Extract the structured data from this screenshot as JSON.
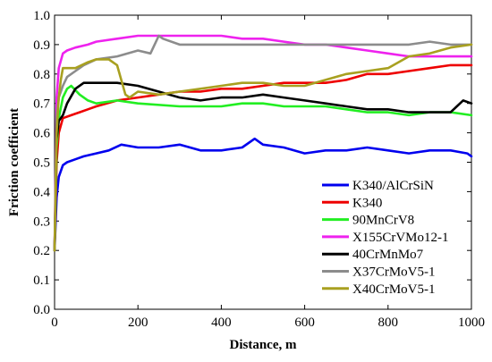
{
  "chart_data": {
    "type": "line",
    "title": "",
    "xlabel": "Distance, m",
    "ylabel": "Friction coefficient",
    "xlim": [
      0,
      1000
    ],
    "ylim": [
      0,
      1.0
    ],
    "x_ticks": [
      "0",
      "200",
      "400",
      "600",
      "800",
      "1000"
    ],
    "y_ticks": [
      "0.0",
      "0.1",
      "0.2",
      "0.3",
      "0.4",
      "0.5",
      "0.6",
      "0.7",
      "0.8",
      "0.9",
      "1.0"
    ],
    "grid": false,
    "legend_position": "lower-right",
    "series": [
      {
        "name": "K340/AlCrSiN",
        "color": "#0000ee",
        "x": [
          0,
          5,
          10,
          20,
          30,
          50,
          70,
          100,
          130,
          160,
          200,
          250,
          300,
          350,
          400,
          450,
          480,
          500,
          550,
          600,
          650,
          700,
          750,
          800,
          850,
          900,
          950,
          990,
          1000
        ],
        "y": [
          0.2,
          0.38,
          0.45,
          0.49,
          0.5,
          0.51,
          0.52,
          0.53,
          0.54,
          0.56,
          0.55,
          0.55,
          0.56,
          0.54,
          0.54,
          0.55,
          0.58,
          0.56,
          0.55,
          0.53,
          0.54,
          0.54,
          0.55,
          0.54,
          0.53,
          0.54,
          0.54,
          0.53,
          0.52
        ]
      },
      {
        "name": "K340",
        "color": "#ee0000",
        "x": [
          0,
          5,
          10,
          20,
          40,
          60,
          80,
          100,
          150,
          200,
          250,
          300,
          350,
          400,
          450,
          500,
          550,
          600,
          650,
          700,
          750,
          800,
          850,
          900,
          950,
          1000
        ],
        "y": [
          0.2,
          0.5,
          0.6,
          0.65,
          0.66,
          0.67,
          0.68,
          0.69,
          0.71,
          0.72,
          0.73,
          0.74,
          0.74,
          0.75,
          0.75,
          0.76,
          0.77,
          0.77,
          0.77,
          0.78,
          0.8,
          0.8,
          0.81,
          0.82,
          0.83,
          0.83
        ]
      },
      {
        "name": "90MnCrV8",
        "color": "#22ee22",
        "x": [
          0,
          5,
          10,
          20,
          30,
          40,
          60,
          80,
          100,
          150,
          200,
          300,
          400,
          450,
          500,
          550,
          600,
          650,
          700,
          750,
          800,
          850,
          900,
          950,
          1000
        ],
        "y": [
          0.2,
          0.55,
          0.65,
          0.72,
          0.75,
          0.76,
          0.73,
          0.71,
          0.7,
          0.71,
          0.7,
          0.69,
          0.69,
          0.7,
          0.7,
          0.69,
          0.69,
          0.69,
          0.68,
          0.67,
          0.67,
          0.66,
          0.67,
          0.67,
          0.66
        ]
      },
      {
        "name": "X155CrVMo12-1",
        "color": "#ee22ee",
        "x": [
          0,
          5,
          10,
          20,
          30,
          50,
          80,
          100,
          150,
          200,
          250,
          300,
          350,
          400,
          450,
          500,
          550,
          600,
          650,
          700,
          750,
          800,
          850,
          900,
          950,
          1000
        ],
        "y": [
          0.2,
          0.72,
          0.82,
          0.87,
          0.88,
          0.89,
          0.9,
          0.91,
          0.92,
          0.93,
          0.93,
          0.93,
          0.93,
          0.93,
          0.92,
          0.92,
          0.91,
          0.9,
          0.9,
          0.89,
          0.88,
          0.87,
          0.86,
          0.86,
          0.86,
          0.86
        ]
      },
      {
        "name": "40CrMnMo7",
        "color": "#000000",
        "x": [
          0,
          5,
          10,
          20,
          30,
          50,
          70,
          100,
          150,
          200,
          250,
          300,
          350,
          400,
          450,
          500,
          550,
          600,
          650,
          700,
          750,
          800,
          850,
          900,
          950,
          980,
          1000
        ],
        "y": [
          0.2,
          0.58,
          0.64,
          0.66,
          0.7,
          0.75,
          0.77,
          0.77,
          0.77,
          0.76,
          0.74,
          0.72,
          0.71,
          0.72,
          0.72,
          0.73,
          0.72,
          0.71,
          0.7,
          0.69,
          0.68,
          0.68,
          0.67,
          0.67,
          0.67,
          0.71,
          0.7
        ]
      },
      {
        "name": "X37CrMoV5-1",
        "color": "#8c8c8c",
        "x": [
          0,
          5,
          10,
          20,
          30,
          50,
          70,
          100,
          150,
          200,
          230,
          250,
          260,
          300,
          350,
          400,
          450,
          500,
          550,
          600,
          650,
          700,
          750,
          800,
          850,
          900,
          950,
          1000
        ],
        "y": [
          0.2,
          0.65,
          0.72,
          0.76,
          0.79,
          0.81,
          0.83,
          0.85,
          0.86,
          0.88,
          0.87,
          0.93,
          0.92,
          0.9,
          0.9,
          0.9,
          0.9,
          0.9,
          0.9,
          0.9,
          0.9,
          0.9,
          0.9,
          0.9,
          0.9,
          0.91,
          0.9,
          0.9
        ]
      },
      {
        "name": "X40CrMoV5-1",
        "color": "#a8a020",
        "x": [
          0,
          5,
          10,
          15,
          20,
          30,
          50,
          80,
          100,
          130,
          150,
          170,
          180,
          200,
          250,
          300,
          350,
          400,
          450,
          500,
          550,
          600,
          650,
          700,
          750,
          800,
          850,
          900,
          950,
          1000
        ],
        "y": [
          0.2,
          0.6,
          0.72,
          0.78,
          0.82,
          0.82,
          0.82,
          0.84,
          0.85,
          0.85,
          0.83,
          0.73,
          0.72,
          0.74,
          0.73,
          0.74,
          0.75,
          0.76,
          0.77,
          0.77,
          0.76,
          0.76,
          0.78,
          0.8,
          0.81,
          0.82,
          0.86,
          0.87,
          0.89,
          0.9
        ]
      }
    ]
  }
}
